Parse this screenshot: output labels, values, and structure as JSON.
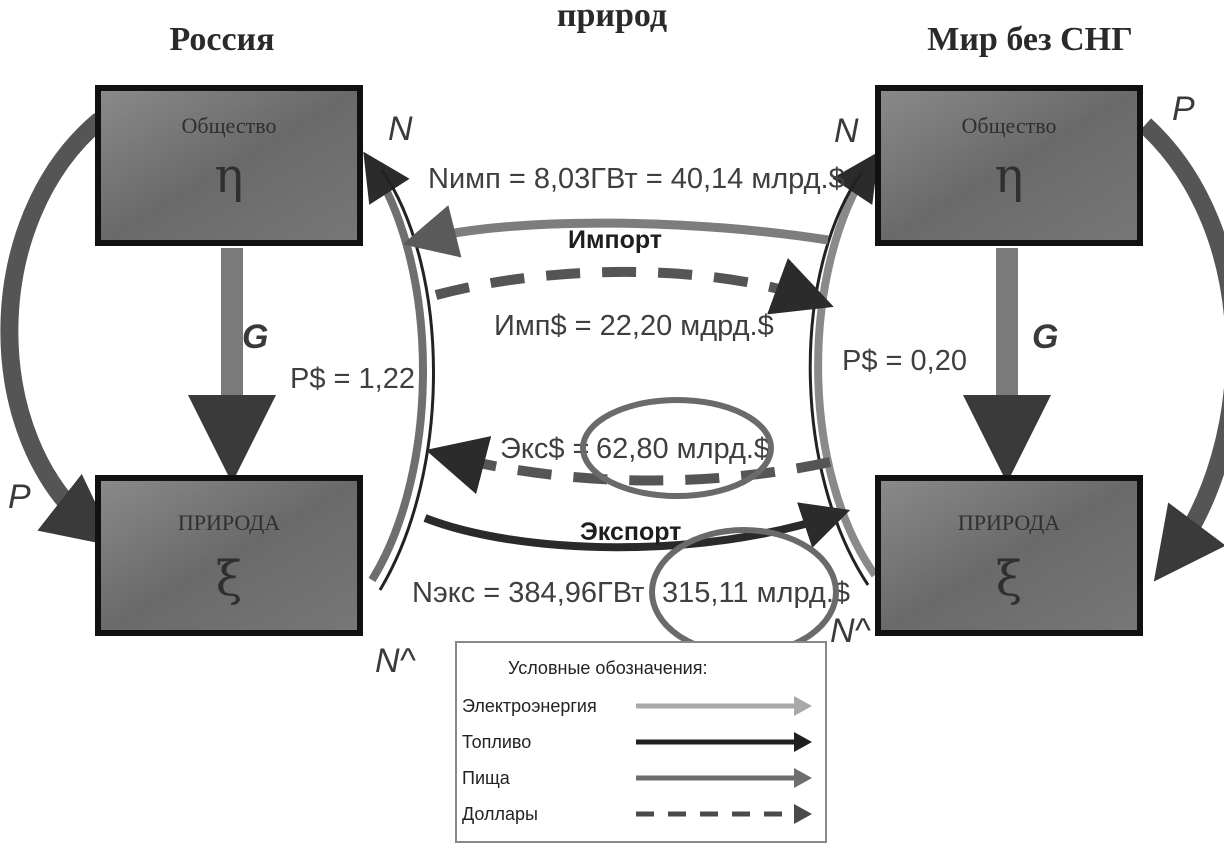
{
  "header": {
    "clipped_title": "природ",
    "left_region": "Россия",
    "right_region": "Мир без СНГ"
  },
  "boxes": {
    "society_label": "Общество",
    "society_symbol": "η",
    "nature_label": "ПРИРОДА",
    "nature_symbol": "ξ"
  },
  "letters": {
    "p": "P",
    "g": "G",
    "n": "N",
    "n_hat": "N^"
  },
  "left": {
    "p_dollar": "P$ = 1,22"
  },
  "right": {
    "p_dollar": "P$ = 0,20"
  },
  "flows": {
    "n_import": "Nимп = 8,03ГВт = 40,14 млрд.$",
    "import_label": "Импорт",
    "import_dollars": "Имп$ = 22,20 мдрд.$",
    "export_dollars_prefix": "Экс$ =",
    "export_dollars_value": "62,80 млрд.$",
    "export_label": "Экспорт",
    "n_export_prefix": "Nэкс = 384,96ГВт",
    "n_export_value": "315,11 млрд.$"
  },
  "legend": {
    "title": "Условные обозначения:",
    "items": [
      {
        "label": "Электроэнергия",
        "color": "#a9a9a9"
      },
      {
        "label": "Топливо",
        "color": "#1f1f1f"
      },
      {
        "label": "Пища",
        "color": "#6e6e6e"
      },
      {
        "label": "Доллары",
        "color": "#4a4a4a"
      }
    ]
  },
  "colors": {
    "box_fill": "#666666",
    "box_border": "#111111",
    "highlight_ring": "#6a6a6a"
  }
}
